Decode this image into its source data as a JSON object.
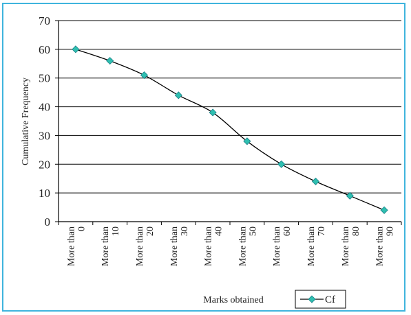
{
  "chart_data": {
    "type": "line",
    "title": "",
    "xlabel": "Marks obtained",
    "ylabel": "Cumulative Frequency",
    "ylim": [
      0,
      70
    ],
    "yticks": [
      0,
      10,
      20,
      30,
      40,
      50,
      60,
      70
    ],
    "grid": "horizontal",
    "legend_position": "bottom-right",
    "categories": [
      [
        "More than",
        "0"
      ],
      [
        "More than",
        "10"
      ],
      [
        "More than",
        "20"
      ],
      [
        "More than",
        "30"
      ],
      [
        "More than",
        "40"
      ],
      [
        "More than",
        "50"
      ],
      [
        "More than",
        "60"
      ],
      [
        "More than",
        "70"
      ],
      [
        "More than",
        "80"
      ],
      [
        "More than",
        "90"
      ]
    ],
    "series": [
      {
        "name": "Cf",
        "values": [
          60,
          56,
          51,
          44,
          38,
          28,
          20,
          14,
          9,
          4
        ],
        "color": "#000000",
        "marker_color": "#2fbfb0"
      }
    ],
    "frame_color": "#3fb4dd"
  }
}
